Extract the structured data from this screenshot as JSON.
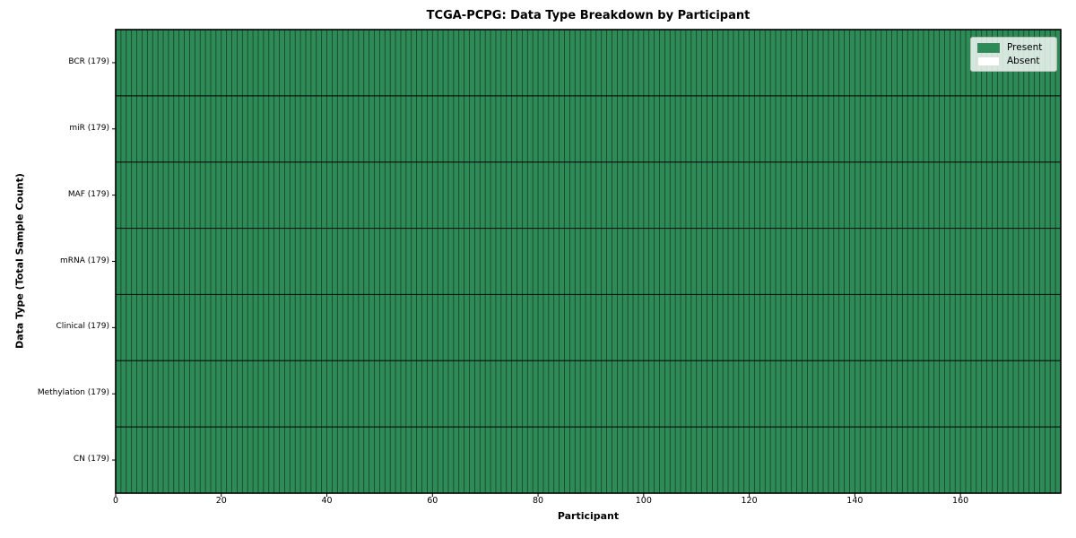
{
  "chart_data": {
    "type": "heatmap",
    "title": "TCGA-PCPG: Data Type Breakdown by Participant",
    "xlabel": "Participant",
    "ylabel": "Data Type (Total Sample Count)",
    "rows": [
      "BCR (179)",
      "miR (179)",
      "MAF (179)",
      "mRNA (179)",
      "Clinical (179)",
      "Methylation (179)",
      "CN (179)"
    ],
    "n_participants": 179,
    "xlim": [
      0,
      179
    ],
    "x_ticks": [
      0,
      20,
      40,
      60,
      80,
      100,
      120,
      140,
      160
    ],
    "series": [
      {
        "name": "BCR",
        "present_count": 179,
        "absent_count": 0
      },
      {
        "name": "miR",
        "present_count": 179,
        "absent_count": 0
      },
      {
        "name": "MAF",
        "present_count": 179,
        "absent_count": 0
      },
      {
        "name": "mRNA",
        "present_count": 179,
        "absent_count": 0
      },
      {
        "name": "Clinical",
        "present_count": 179,
        "absent_count": 0
      },
      {
        "name": "Methylation",
        "present_count": 179,
        "absent_count": 0
      },
      {
        "name": "CN",
        "present_count": 179,
        "absent_count": 0
      }
    ],
    "cell_states": "all cells Present for every participant and every data type",
    "legend": [
      {
        "label": "Present",
        "color": "#2e8b57"
      },
      {
        "label": "Absent",
        "color": "#ffffff"
      }
    ],
    "colors": {
      "present": "#2e8b57",
      "absent": "#ffffff",
      "column_grid": "rgba(0,0,0,0.55)",
      "row_grid": "rgba(0,0,0,0.8)",
      "border": "#000000"
    },
    "grid": true,
    "legend_position": "upper right"
  }
}
